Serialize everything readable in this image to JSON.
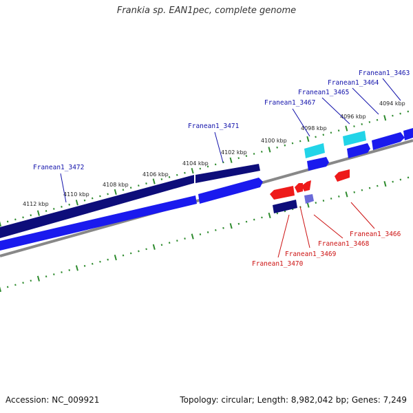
{
  "title": "Frankia sp. EAN1pec, complete genome",
  "footer": {
    "accession": "Accession: NC_009921",
    "summary": "Topology: circular; Length: 8,982,042 bp; Genes: 7,249"
  },
  "colors": {
    "forward_gene": "#1a1aee",
    "forward_gene_dark": "#0d0d7a",
    "forward_cyan": "#22d4e8",
    "reverse_gene": "#ee1a1a",
    "reverse_gene_dark": "#0d0d7a",
    "reverse_light": "#6a6ad8",
    "backbone": "#888888",
    "tick": "#2e8b2e",
    "forward_label": "#1010aa",
    "reverse_label": "#cc1010"
  },
  "diagram_data": {
    "scale_ticks": [
      {
        "kbp": 4112,
        "label": "4112 kbp"
      },
      {
        "kbp": 4110,
        "label": "4110 kbp"
      },
      {
        "kbp": 4108,
        "label": "4108 kbp"
      },
      {
        "kbp": 4106,
        "label": "4106 kbp"
      },
      {
        "kbp": 4104,
        "label": "4104 kbp"
      },
      {
        "kbp": 4102,
        "label": "4102 kbp"
      },
      {
        "kbp": 4100,
        "label": "4100 kbp"
      },
      {
        "kbp": 4098,
        "label": "4098 kbp"
      },
      {
        "kbp": 4096,
        "label": "4096 kbp"
      },
      {
        "kbp": 4094,
        "label": "4094 kbp"
      }
    ],
    "forward_labels": [
      "Franean1_3472",
      "Franean1_3471",
      "Franean1_3467",
      "Franean1_3465",
      "Franean1_3464",
      "Franean1_3463"
    ],
    "reverse_labels": [
      "Franean1_3470",
      "Franean1_3469",
      "Franean1_3468",
      "Franean1_3466"
    ]
  }
}
